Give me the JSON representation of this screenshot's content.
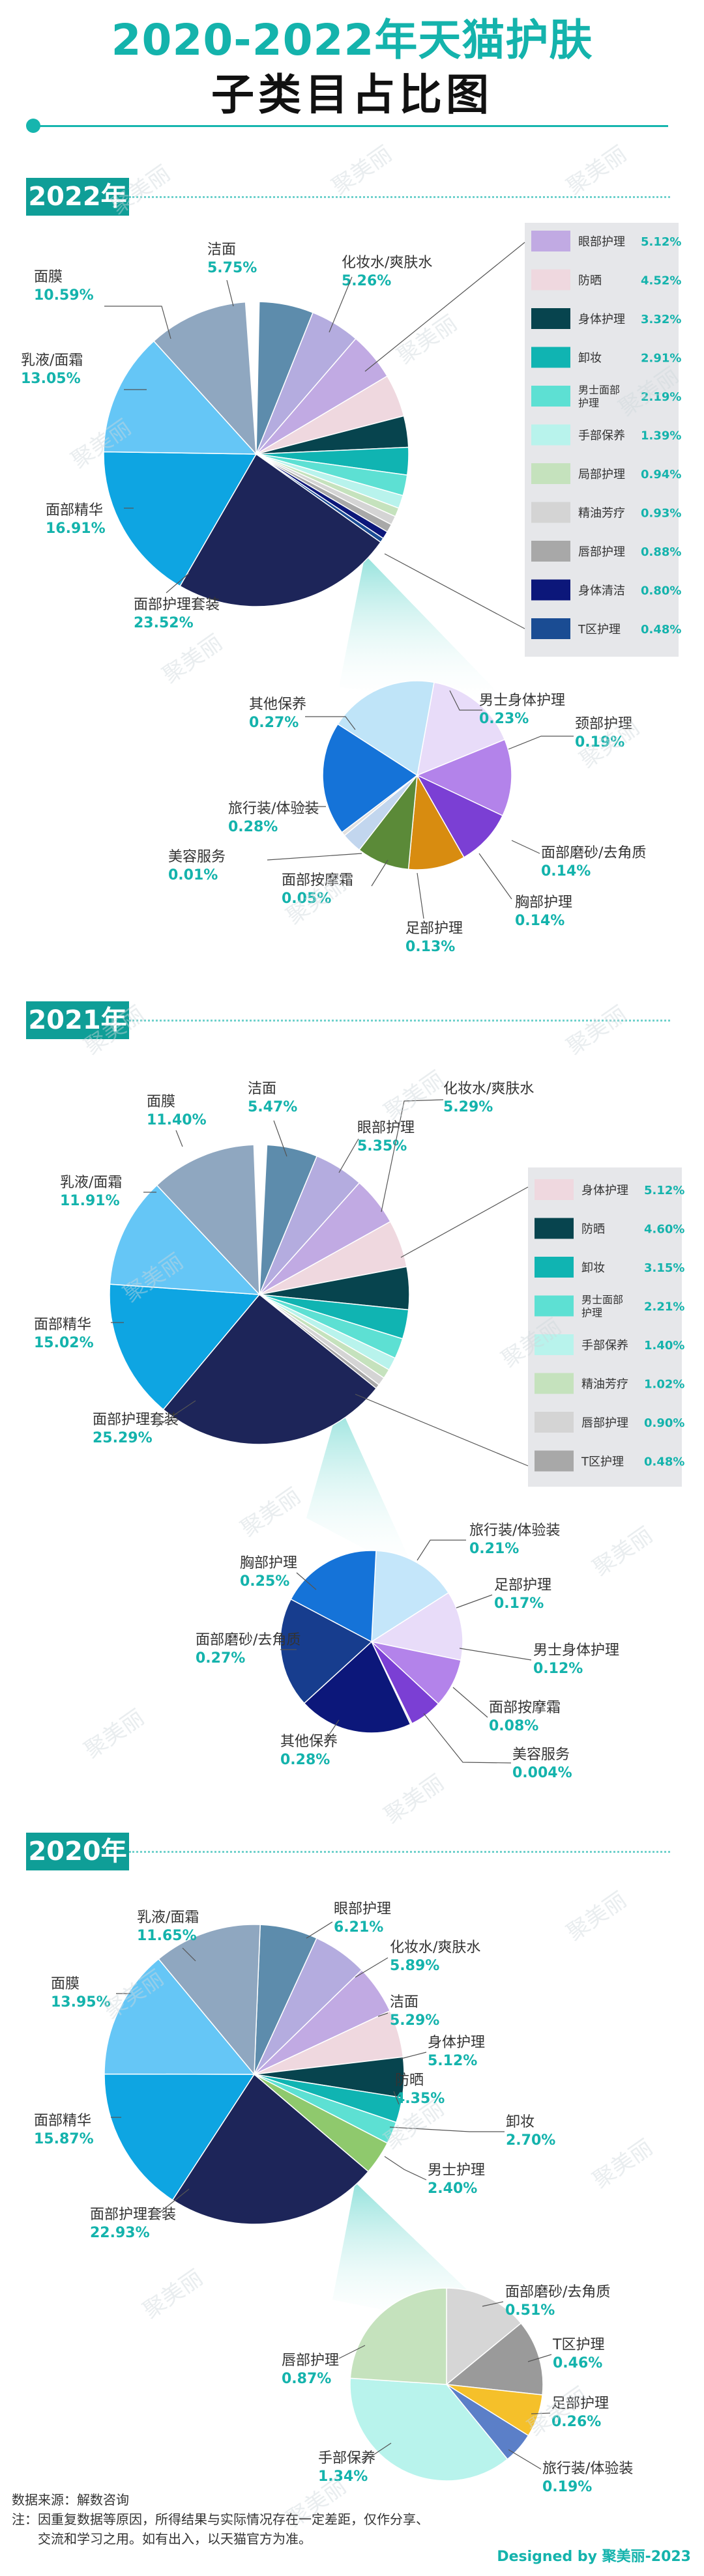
{
  "header": {
    "title_line1": "2020-2022年天猫护肤",
    "title_line2": "子类目占比图"
  },
  "colors": {
    "accent": "#14b3ac",
    "legend_bg": "#e6e7ea",
    "leader": "#555555"
  },
  "chart_data": [
    {
      "type": "pie",
      "year": "2022年",
      "slices": [
        {
          "name": "面部护理套装",
          "value": "23.52%",
          "color": "#1d2559",
          "label_pos": "left"
        },
        {
          "name": "面部精华",
          "value": "16.91%",
          "color": "#0ea5e2",
          "label_pos": "left"
        },
        {
          "name": "乳液/面霜",
          "value": "13.05%",
          "color": "#65c6f6",
          "label_pos": "left"
        },
        {
          "name": "面膜",
          "value": "10.59%",
          "color": "#8fa7c0",
          "label_pos": "left"
        },
        {
          "name": "洁面",
          "value": "5.75%",
          "color": "#5d8cac",
          "label_pos": "top"
        },
        {
          "name": "化妆水/爽肤水",
          "value": "5.26%",
          "color": "#b4acdf",
          "label_pos": "top"
        },
        {
          "name": "眼部护理",
          "value": "5.12%",
          "color": "#c1aae3",
          "label_pos": "legend"
        },
        {
          "name": "防晒",
          "value": "4.52%",
          "color": "#efd8df",
          "label_pos": "legend"
        },
        {
          "name": "身体护理",
          "value": "3.32%",
          "color": "#07444e",
          "label_pos": "legend"
        },
        {
          "name": "卸妆",
          "value": "2.91%",
          "color": "#10b4b2",
          "label_pos": "legend"
        },
        {
          "name": "男士面部护理",
          "value": "2.19%",
          "color": "#5de0d3",
          "label_pos": "legend"
        },
        {
          "name": "手部保养",
          "value": "1.39%",
          "color": "#b8f3ec",
          "label_pos": "legend"
        },
        {
          "name": "局部护理",
          "value": "0.94%",
          "color": "#c5e2bd",
          "label_pos": "legend"
        },
        {
          "name": "精油芳疗",
          "value": "0.93%",
          "color": "#d4d4d4",
          "label_pos": "legend"
        },
        {
          "name": "唇部护理",
          "value": "0.88%",
          "color": "#a8a8a8",
          "label_pos": "legend"
        },
        {
          "name": "身体清洁",
          "value": "0.80%",
          "color": "#0c177a",
          "label_pos": "legend"
        },
        {
          "name": "T区护理",
          "value": "0.48%",
          "color": "#1a4c93",
          "label_pos": "legend"
        }
      ],
      "detail": [
        {
          "name": "男士身体护理",
          "value": "0.23%",
          "color": "#e8dcf9"
        },
        {
          "name": "颈部护理",
          "value": "0.19%",
          "color": "#b383ea"
        },
        {
          "name": "面部磨砂/去角质",
          "value": "0.14%",
          "color": "#7b3fd4"
        },
        {
          "name": "胸部护理",
          "value": "0.14%",
          "color": "#d88c10"
        },
        {
          "name": "足部护理",
          "value": "0.13%",
          "color": "#5b8a38"
        },
        {
          "name": "面部按摩霜",
          "value": "0.05%",
          "color": "#c2d6ee"
        },
        {
          "name": "美容服务",
          "value": "0.01%",
          "color": "#e0e0e0"
        },
        {
          "name": "旅行装/体验装",
          "value": "0.28%",
          "color": "#1573d8"
        },
        {
          "name": "其他保养",
          "value": "0.27%",
          "color": "#bfe4f8"
        }
      ]
    },
    {
      "type": "pie",
      "year": "2021年",
      "slices": [
        {
          "name": "面部护理套装",
          "value": "25.29%",
          "color": "#1d2559",
          "label_pos": "left"
        },
        {
          "name": "面部精华",
          "value": "15.02%",
          "color": "#0ea5e2",
          "label_pos": "left"
        },
        {
          "name": "乳液/面霜",
          "value": "11.91%",
          "color": "#65c6f6",
          "label_pos": "left"
        },
        {
          "name": "面膜",
          "value": "11.40%",
          "color": "#8fa7c0",
          "label_pos": "left"
        },
        {
          "name": "洁面",
          "value": "5.47%",
          "color": "#5d8cac",
          "label_pos": "top"
        },
        {
          "name": "眼部护理",
          "value": "5.35%",
          "color": "#b4acdf",
          "label_pos": "top"
        },
        {
          "name": "化妆水/爽肤水",
          "value": "5.29%",
          "color": "#c1aae3",
          "label_pos": "top"
        },
        {
          "name": "身体护理",
          "value": "5.12%",
          "color": "#efd8df",
          "label_pos": "legend"
        },
        {
          "name": "防晒",
          "value": "4.60%",
          "color": "#07444e",
          "label_pos": "legend"
        },
        {
          "name": "卸妆",
          "value": "3.15%",
          "color": "#10b4b2",
          "label_pos": "legend"
        },
        {
          "name": "男士面部护理",
          "value": "2.21%",
          "color": "#5de0d3",
          "label_pos": "legend"
        },
        {
          "name": "手部保养",
          "value": "1.40%",
          "color": "#b8f3ec",
          "label_pos": "legend"
        },
        {
          "name": "精油芳疗",
          "value": "1.02%",
          "color": "#c5e2bd",
          "label_pos": "legend"
        },
        {
          "name": "唇部护理",
          "value": "0.90%",
          "color": "#d4d4d4",
          "label_pos": "legend"
        },
        {
          "name": "T区护理",
          "value": "0.48%",
          "color": "#a8a8a8",
          "label_pos": "legend"
        }
      ],
      "detail": [
        {
          "name": "旅行装/体验装",
          "value": "0.21%",
          "color": "#c4e6fa"
        },
        {
          "name": "足部护理",
          "value": "0.17%",
          "color": "#e8dcf9"
        },
        {
          "name": "男士身体护理",
          "value": "0.12%",
          "color": "#b383ea"
        },
        {
          "name": "面部按摩霜",
          "value": "0.08%",
          "color": "#7b3fd4"
        },
        {
          "name": "美容服务",
          "value": "0.004%",
          "color": "#e0e0e0"
        },
        {
          "name": "其他保养",
          "value": "0.28%",
          "color": "#0c177a"
        },
        {
          "name": "面部磨砂/去角质",
          "value": "0.27%",
          "color": "#173d8e"
        },
        {
          "name": "胸部护理",
          "value": "0.25%",
          "color": "#1573d8"
        }
      ]
    },
    {
      "type": "pie",
      "year": "2020年",
      "slices": [
        {
          "name": "面部护理套装",
          "value": "22.93%",
          "color": "#1d2559",
          "label_pos": "left"
        },
        {
          "name": "面部精华",
          "value": "15.87%",
          "color": "#0ea5e2",
          "label_pos": "left"
        },
        {
          "name": "面膜",
          "value": "13.95%",
          "color": "#65c6f6",
          "label_pos": "left"
        },
        {
          "name": "乳液/面霜",
          "value": "11.65%",
          "color": "#8fa7c0",
          "label_pos": "left"
        },
        {
          "name": "眼部护理",
          "value": "6.21%",
          "color": "#5d8cac",
          "label_pos": "right"
        },
        {
          "name": "化妆水/爽肤水",
          "value": "5.89%",
          "color": "#b4acdf",
          "label_pos": "right"
        },
        {
          "name": "洁面",
          "value": "5.29%",
          "color": "#c1aae3",
          "label_pos": "right"
        },
        {
          "name": "身体护理",
          "value": "5.12%",
          "color": "#efd8df",
          "label_pos": "right"
        },
        {
          "name": "防晒",
          "value": "4.35%",
          "color": "#07444e",
          "label_pos": "right"
        },
        {
          "name": "卸妆",
          "value": "2.70%",
          "color": "#10b4b2",
          "label_pos": "right"
        },
        {
          "name": "男士护理",
          "value": "2.40%",
          "color": "#5de0d3",
          "label_pos": "right"
        },
        {
          "name": "",
          "value": "",
          "color": "#8fc96d",
          "label_pos": "none"
        }
      ],
      "detail": [
        {
          "name": "面部磨砂/去角质",
          "value": "0.51%",
          "color": "#d6d6d6"
        },
        {
          "name": "T区护理",
          "value": "0.46%",
          "color": "#9a9a9a"
        },
        {
          "name": "足部护理",
          "value": "0.26%",
          "color": "#f5c02a"
        },
        {
          "name": "旅行装/体验装",
          "value": "0.19%",
          "color": "#5b7fc8"
        },
        {
          "name": "手部保养",
          "value": "1.34%",
          "color": "#b8f3ec"
        },
        {
          "name": "唇部护理",
          "value": "0.87%",
          "color": "#c5e2bd"
        }
      ]
    }
  ],
  "watermark": "聚美丽",
  "footer": {
    "source": "数据来源：解数咨询",
    "note1": "注：因重复数据等原因，所得结果与实际情况存在一定差距，仅作分享、",
    "note2": "交流和学习之用。如有出入，以天猫官方为准。",
    "credit": "Designed by 聚美丽-2023"
  }
}
